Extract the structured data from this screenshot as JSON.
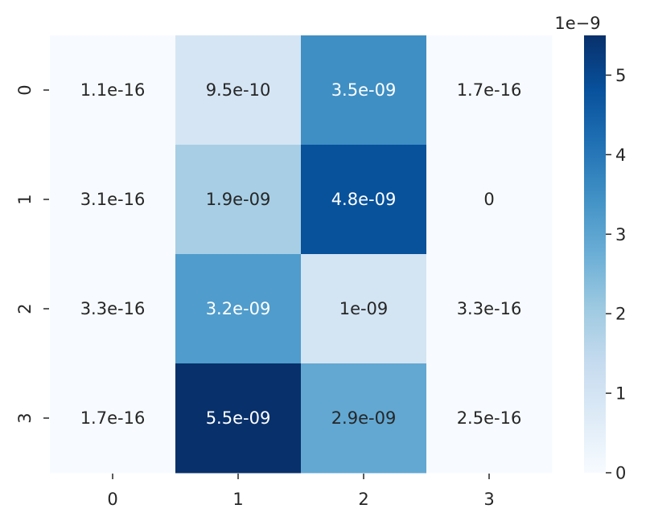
{
  "chart_data": {
    "type": "heatmap",
    "title": "",
    "xlabel": "",
    "ylabel": "",
    "x_tick_labels": [
      "0",
      "1",
      "2",
      "3"
    ],
    "y_tick_labels": [
      "0",
      "1",
      "2",
      "3"
    ],
    "values": [
      [
        1.1e-16,
        9.5e-10,
        3.5e-09,
        1.7e-16
      ],
      [
        3.1e-16,
        1.9e-09,
        4.8e-09,
        0
      ],
      [
        3.3e-16,
        3.2e-09,
        1e-09,
        3.3e-16
      ],
      [
        1.7e-16,
        5.5e-09,
        2.9e-09,
        2.5e-16
      ]
    ],
    "annotations": [
      [
        "1.1e-16",
        "9.5e-10",
        "3.5e-09",
        "1.7e-16"
      ],
      [
        "3.1e-16",
        "1.9e-09",
        "4.8e-09",
        "0"
      ],
      [
        "3.3e-16",
        "3.2e-09",
        "1e-09",
        "3.3e-16"
      ],
      [
        "1.7e-16",
        "5.5e-09",
        "2.9e-09",
        "2.5e-16"
      ]
    ],
    "colormap": "Blues",
    "colorbar": {
      "range": [
        0,
        5.5e-09
      ],
      "tick_values": [
        0,
        1,
        2,
        3,
        4,
        5
      ],
      "tick_labels": [
        "0",
        "1",
        "2",
        "3",
        "4",
        "5"
      ],
      "exponent_label": "1e−9"
    }
  }
}
